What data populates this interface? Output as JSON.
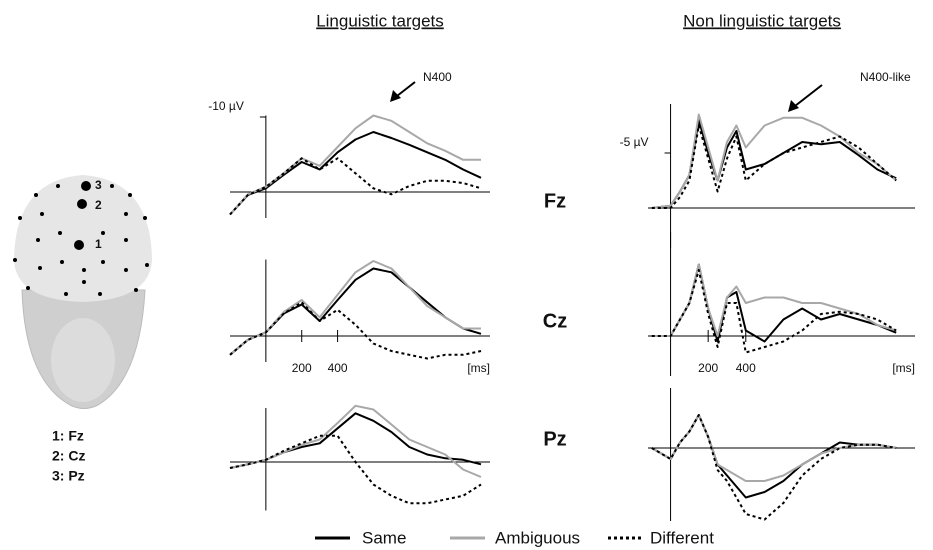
{
  "column_titles": [
    "Linguistic targets",
    "Non linguistic targets"
  ],
  "row_labels": [
    "Fz",
    "Cz",
    "Pz"
  ],
  "electrode_numbers": [
    "1",
    "2",
    "3"
  ],
  "electrode_labels": [
    "1: Fz",
    "2: Cz",
    "3: Pz"
  ],
  "chart_data": [
    {
      "type": "line",
      "annotation": "N400",
      "xlim": [
        -200,
        1250
      ],
      "ylim": [
        4,
        -11
      ],
      "yticks": [
        {
          "value": -10,
          "label": "-10 µV"
        }
      ],
      "x": [
        -200,
        -100,
        0,
        100,
        200,
        300,
        400,
        500,
        600,
        700,
        800,
        900,
        1000,
        1100,
        1200
      ],
      "series": [
        {
          "name": "Same",
          "color": "#000000",
          "dash": false,
          "values": [
            3,
            0.4,
            -0.5,
            -2.3,
            -4,
            -3,
            -5.3,
            -7,
            -8,
            -7.2,
            -6.3,
            -5.3,
            -4.3,
            -3,
            -1.9
          ]
        },
        {
          "name": "Ambiguous",
          "color": "#a8a8a8",
          "dash": false,
          "values": [
            3,
            0.3,
            -0.7,
            -2.5,
            -4.5,
            -3.5,
            -6,
            -8.5,
            -10.2,
            -9.5,
            -8,
            -6.5,
            -5.5,
            -4.3,
            -4.3
          ]
        },
        {
          "name": "Different",
          "color": "#000000",
          "dash": true,
          "values": [
            3,
            0.4,
            -0.7,
            -2.5,
            -4.5,
            -3,
            -4.5,
            -2.5,
            -0.5,
            0.3,
            -0.8,
            -1.5,
            -1.5,
            -1.2,
            -0.5
          ]
        }
      ]
    },
    {
      "type": "line",
      "xlabel": "[ms]",
      "xlim": [
        -200,
        1250
      ],
      "ylim": [
        4,
        -11
      ],
      "xticks": [
        200,
        400
      ],
      "x": [
        -200,
        -100,
        0,
        100,
        200,
        300,
        400,
        500,
        600,
        700,
        800,
        900,
        1000,
        1100,
        1200
      ],
      "series": [
        {
          "color": "#000000",
          "dash": false,
          "values": [
            2.5,
            0.5,
            -0.5,
            -3,
            -4.2,
            -2,
            -4.8,
            -7.5,
            -9,
            -8.5,
            -6.5,
            -4.5,
            -2.5,
            -1,
            -0.3
          ]
        },
        {
          "color": "#a8a8a8",
          "dash": false,
          "values": [
            2.5,
            0.5,
            -0.5,
            -3.2,
            -4.8,
            -2.5,
            -5.5,
            -8.5,
            -10,
            -9,
            -6.5,
            -4,
            -2.5,
            -1,
            -1
          ]
        },
        {
          "color": "#000000",
          "dash": true,
          "values": [
            2.5,
            0.5,
            -0.5,
            -3,
            -4.5,
            -2,
            -3.5,
            -1.5,
            1,
            2,
            2.5,
            3,
            2.5,
            2.5,
            2
          ]
        }
      ]
    },
    {
      "type": "line",
      "xlim": [
        -200,
        1250
      ],
      "ylim": [
        7,
        -8
      ],
      "x": [
        -200,
        -100,
        0,
        100,
        200,
        300,
        400,
        500,
        600,
        700,
        800,
        900,
        1000,
        1100,
        1200
      ],
      "series": [
        {
          "color": "#000000",
          "dash": false,
          "values": [
            0.8,
            0.3,
            -0.3,
            -1.3,
            -2,
            -2.5,
            -4.5,
            -6.5,
            -5.5,
            -4,
            -2,
            -1,
            -0.5,
            -0.3,
            0.3
          ]
        },
        {
          "color": "#a8a8a8",
          "dash": false,
          "values": [
            0.8,
            0.3,
            -0.3,
            -1.3,
            -2.3,
            -3,
            -5.2,
            -7.5,
            -7,
            -5,
            -3,
            -2,
            -1,
            1,
            2
          ]
        },
        {
          "color": "#000000",
          "dash": true,
          "values": [
            0.8,
            0.3,
            -0.3,
            -1.5,
            -2.5,
            -3.5,
            -3.5,
            0,
            3,
            4.5,
            5.5,
            5.5,
            5,
            4.5,
            3
          ]
        }
      ]
    },
    {
      "type": "line",
      "annotation": "N400-like",
      "xlim": [
        -120,
        1300
      ],
      "ylim": [
        4,
        -10
      ],
      "yticks": [
        {
          "value": -5,
          "label": "-5 µV"
        }
      ],
      "x": [
        -100,
        0,
        50,
        100,
        150,
        200,
        250,
        300,
        350,
        400,
        500,
        600,
        700,
        800,
        900,
        1000,
        1100,
        1200
      ],
      "series": [
        {
          "color": "#000000",
          "dash": false,
          "values": [
            0,
            -0.2,
            -1.5,
            -3,
            -8,
            -5,
            -2.5,
            -5.5,
            -7,
            -3.5,
            -4,
            -5,
            -6,
            -5.8,
            -6,
            -4.8,
            -3.5,
            -2.7
          ]
        },
        {
          "color": "#a8a8a8",
          "dash": false,
          "values": [
            0,
            -0.2,
            -1.5,
            -3,
            -8.5,
            -5.5,
            -2.5,
            -6,
            -7.5,
            -5.5,
            -7.5,
            -8.2,
            -8.2,
            -7.5,
            -6.5,
            -5,
            -4,
            -2.5
          ]
        },
        {
          "color": "#000000",
          "dash": true,
          "values": [
            0,
            0,
            -1,
            -2.5,
            -7.5,
            -4.5,
            -1.5,
            -4.5,
            -6.5,
            -2.5,
            -4,
            -5,
            -5.5,
            -6,
            -6.5,
            -5.5,
            -4,
            -2.5
          ]
        }
      ]
    },
    {
      "type": "line",
      "xlabel": "[ms]",
      "xlim": [
        -120,
        1300
      ],
      "ylim": [
        4,
        -10
      ],
      "xticks": [
        200,
        400
      ],
      "x": [
        -100,
        0,
        50,
        100,
        150,
        200,
        250,
        300,
        350,
        400,
        500,
        600,
        700,
        800,
        900,
        1000,
        1100,
        1200
      ],
      "series": [
        {
          "color": "#000000",
          "dash": false,
          "values": [
            0,
            0,
            -1.5,
            -3,
            -6.5,
            -2.5,
            0.5,
            -3.5,
            -4,
            -0.5,
            0.5,
            -1.5,
            -2.5,
            -1.5,
            -2,
            -1.5,
            -1,
            -0.3
          ]
        },
        {
          "color": "#a8a8a8",
          "dash": false,
          "values": [
            0,
            0,
            -1.5,
            -3,
            -6.5,
            -2.5,
            0,
            -3.5,
            -4.5,
            -3,
            -3.5,
            -3.5,
            -3,
            -3,
            -2.5,
            -2,
            -1,
            -0.5
          ]
        },
        {
          "color": "#000000",
          "dash": true,
          "values": [
            0,
            0,
            -1.5,
            -3,
            -6,
            -2,
            1,
            -3,
            -3,
            1.5,
            1,
            0.5,
            -0.5,
            -2,
            -2.2,
            -2,
            -1.5,
            -0.5
          ]
        }
      ]
    },
    {
      "type": "line",
      "xlim": [
        -120,
        1300
      ],
      "ylim": [
        7,
        -6
      ],
      "x": [
        -100,
        0,
        50,
        100,
        150,
        200,
        250,
        300,
        350,
        400,
        500,
        600,
        700,
        800,
        900,
        1000,
        1100,
        1200
      ],
      "series": [
        {
          "color": "#000000",
          "dash": false,
          "values": [
            0,
            1,
            -0.5,
            -1.5,
            -3,
            -1,
            1.5,
            2.5,
            3.5,
            4.5,
            4,
            3,
            1.5,
            0.5,
            -0.5,
            -0.3,
            -0.3,
            0
          ]
        },
        {
          "color": "#a8a8a8",
          "dash": false,
          "values": [
            0,
            1,
            -0.5,
            -1.5,
            -3,
            -1,
            1.5,
            2,
            2.5,
            3,
            3,
            2.5,
            1.5,
            0.5,
            0,
            -0.3,
            -0.3,
            0
          ]
        },
        {
          "color": "#000000",
          "dash": true,
          "values": [
            0,
            1,
            -0.5,
            -1.5,
            -3,
            -1,
            2,
            3,
            4.5,
            6,
            6.5,
            5,
            2.5,
            1,
            0,
            -0.3,
            -0.3,
            0
          ]
        }
      ]
    }
  ]
}
